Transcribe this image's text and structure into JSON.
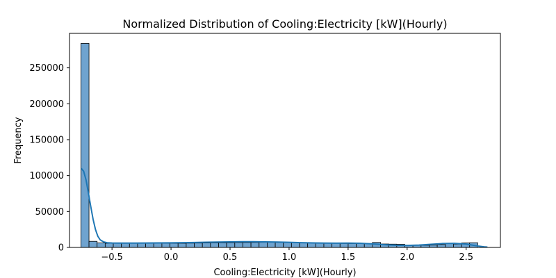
{
  "chart_data": {
    "type": "histogram",
    "title": "Normalized Distribution of Cooling:Electricity [kW](Hourly)",
    "xlabel": "Cooling:Electricity [kW](Hourly)",
    "ylabel": "Frequency",
    "xlim": [
      -0.86,
      2.79
    ],
    "ylim": [
      0,
      298000
    ],
    "xticks": [
      -0.5,
      0.0,
      0.5,
      1.0,
      1.5,
      2.0,
      2.5
    ],
    "xtick_labels": [
      "−0.5",
      "0.0",
      "0.5",
      "1.0",
      "1.5",
      "2.0",
      "2.5"
    ],
    "yticks": [
      0,
      50000,
      100000,
      150000,
      200000,
      250000
    ],
    "ytick_labels": [
      "0",
      "50000",
      "100000",
      "150000",
      "200000",
      "250000"
    ],
    "grid": false,
    "legend": false,
    "bins": {
      "start": -0.7634,
      "width": 0.0686,
      "counts": [
        284000,
        8500,
        6200,
        5800,
        5800,
        5800,
        5800,
        5800,
        5800,
        5800,
        5800,
        5800,
        5800,
        6000,
        6100,
        6200,
        6400,
        6500,
        6600,
        6800,
        6900,
        7000,
        7100,
        7100,
        7000,
        6900,
        6800,
        6600,
        6400,
        6200,
        5900,
        5700,
        5500,
        5400,
        5400,
        5500,
        7000,
        4800,
        4600,
        4300,
        3100,
        2900,
        3000,
        3200,
        4000,
        5800,
        4600,
        6200,
        6500
      ]
    },
    "kde": {
      "x": [
        -0.76,
        -0.74,
        -0.72,
        -0.7,
        -0.68,
        -0.66,
        -0.64,
        -0.62,
        -0.6,
        -0.57,
        -0.54,
        -0.5,
        -0.45,
        -0.4,
        -0.3,
        -0.2,
        -0.1,
        0.0,
        0.1,
        0.2,
        0.3,
        0.4,
        0.5,
        0.6,
        0.7,
        0.8,
        0.9,
        1.0,
        1.1,
        1.2,
        1.3,
        1.4,
        1.5,
        1.6,
        1.7,
        1.8,
        1.9,
        2.0,
        2.1,
        2.2,
        2.3,
        2.4,
        2.5,
        2.55,
        2.6,
        2.65,
        2.68
      ],
      "y": [
        110000,
        106000,
        94000,
        76000,
        57000,
        39000,
        25000,
        15500,
        10500,
        7600,
        6500,
        6200,
        6100,
        6100,
        6100,
        6200,
        6300,
        6400,
        6600,
        6900,
        7200,
        7500,
        7800,
        8000,
        8000,
        7800,
        7500,
        7100,
        6700,
        6300,
        6000,
        5900,
        6000,
        5800,
        5000,
        3900,
        3000,
        2800,
        3300,
        4400,
        5400,
        5700,
        4700,
        3300,
        1900,
        900,
        500
      ]
    },
    "bar_color": "#6fa3cf",
    "line_color": "#1f77b4"
  }
}
